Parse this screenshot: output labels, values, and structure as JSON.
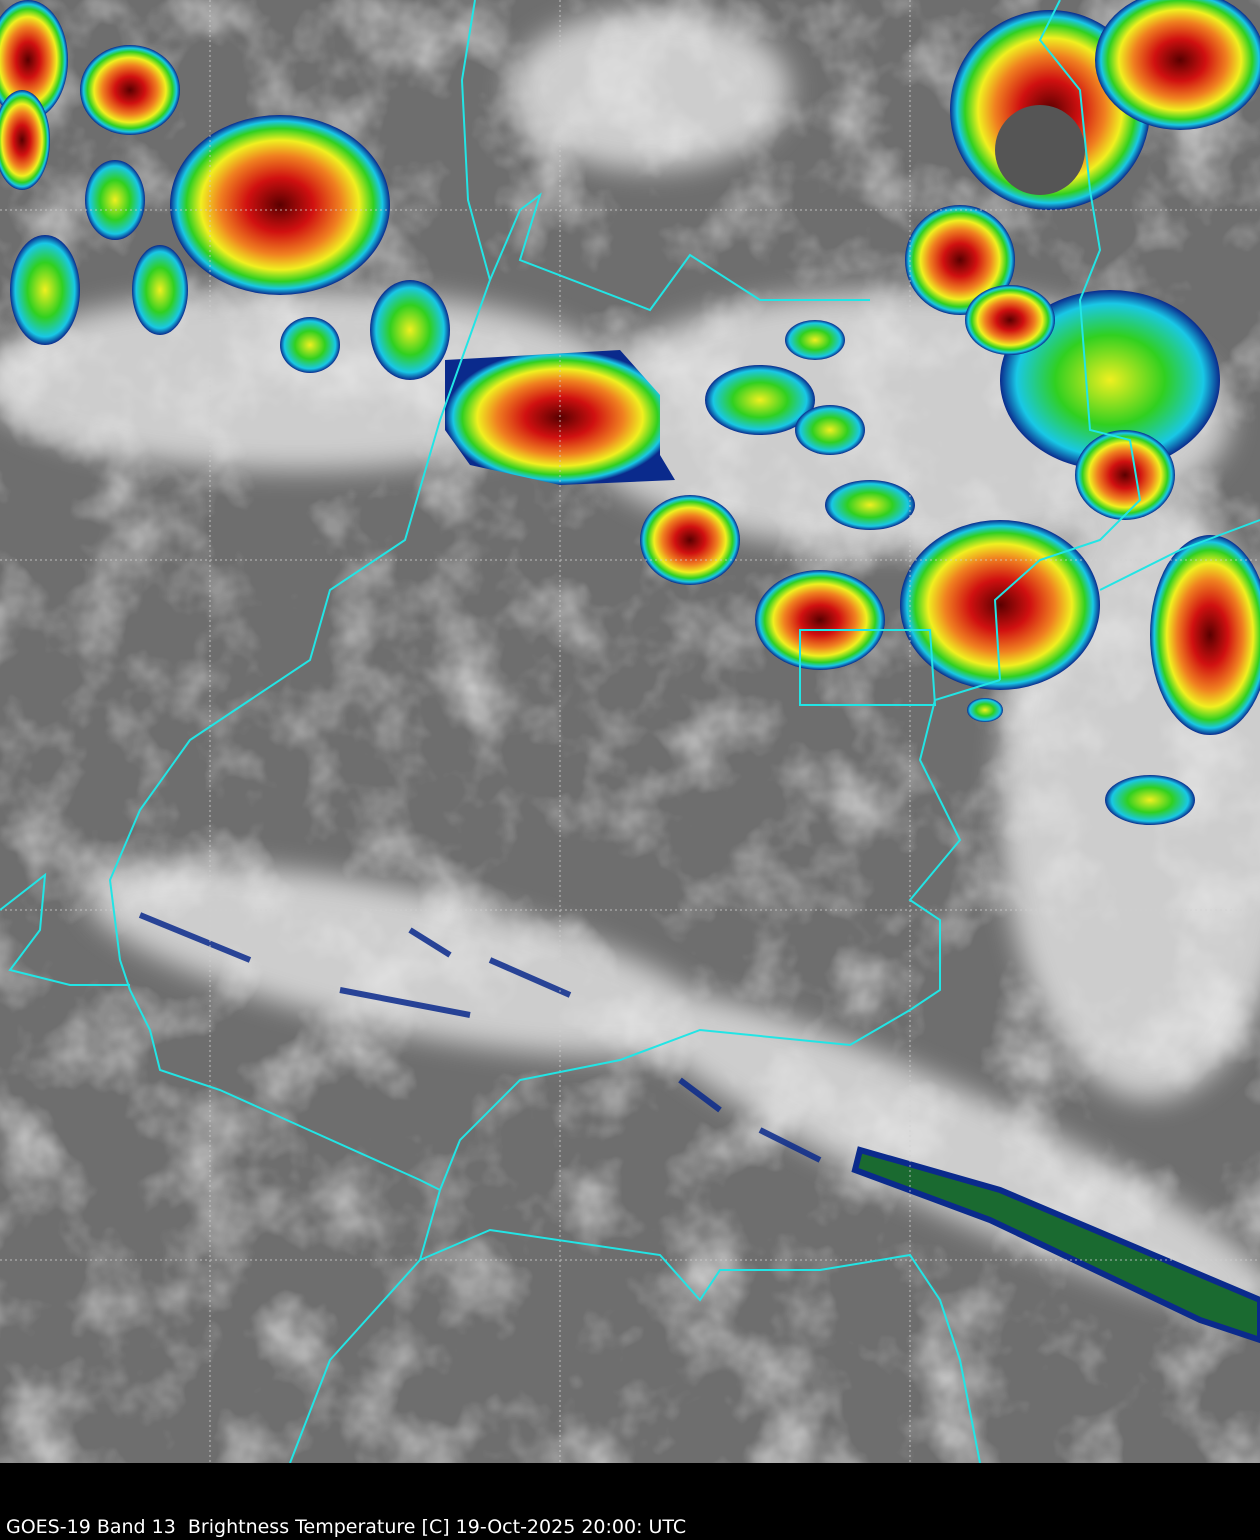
{
  "caption": "GOES-19 Band 13  Brightness Temperature [C] 19-Oct-2025 20:00: UTC",
  "colors": {
    "background": "#000000",
    "clear_sky": "#6e6e6e",
    "cloud_white": "#f0f0f0",
    "border": "#22e5e5",
    "grid": "#d0d0d0",
    "cold_blue": "#0a2a8c",
    "cold_cyan": "#19c8e6",
    "cold_green": "#30d020",
    "cold_yellow": "#f0f020",
    "cold_red": "#d01010",
    "coldest_dark": "#5a0000"
  }
}
